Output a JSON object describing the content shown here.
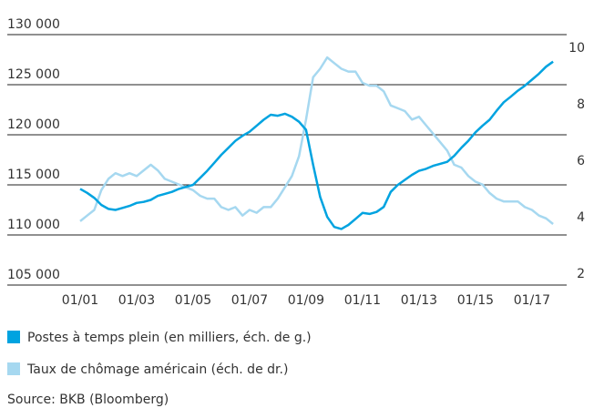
{
  "chart_data": {
    "type": "line",
    "x": [
      2001,
      2001.25,
      2001.5,
      2001.75,
      2002,
      2002.25,
      2002.5,
      2002.75,
      2003,
      2003.25,
      2003.5,
      2003.75,
      2004,
      2004.25,
      2004.5,
      2004.75,
      2005,
      2005.25,
      2005.5,
      2005.75,
      2006,
      2006.25,
      2006.5,
      2006.75,
      2007,
      2007.25,
      2007.5,
      2007.75,
      2008,
      2008.25,
      2008.5,
      2008.75,
      2009,
      2009.25,
      2009.5,
      2009.75,
      2010,
      2010.25,
      2010.5,
      2010.75,
      2011,
      2011.25,
      2011.5,
      2011.75,
      2012,
      2012.25,
      2012.5,
      2012.75,
      2013,
      2013.25,
      2013.5,
      2013.75,
      2014,
      2014.25,
      2014.5,
      2014.75,
      2015,
      2015.25,
      2015.5,
      2015.75,
      2016,
      2016.25,
      2016.5,
      2016.75,
      2017,
      2017.25,
      2017.5,
      2017.75
    ],
    "series": [
      {
        "name": "Postes à temps plein (en milliers, éch. de g.)",
        "color": "#00a3e0",
        "values": [
          114600,
          114200,
          113700,
          113000,
          112600,
          112500,
          112700,
          112900,
          113200,
          113300,
          113500,
          113900,
          114100,
          114300,
          114600,
          114800,
          115000,
          115700,
          116400,
          117200,
          118000,
          118700,
          119400,
          119900,
          120300,
          120900,
          121500,
          122000,
          121900,
          122100,
          121800,
          121300,
          120500,
          117000,
          113800,
          111800,
          110800,
          110600,
          111000,
          111600,
          112200,
          112100,
          112300,
          112800,
          114300,
          115000,
          115500,
          116000,
          116400,
          116600,
          116900,
          117100,
          117300,
          117900,
          118700,
          119400,
          120250,
          120900,
          121500,
          122400,
          123250,
          123800,
          124400,
          124900,
          125500,
          126100,
          126800,
          127300
        ]
      },
      {
        "name": "Taux de chômage américain (éch. de dr.)",
        "color": "#a6d8f0",
        "axis": "y2",
        "values": [
          4.2,
          4.4,
          4.6,
          5.3,
          5.7,
          5.9,
          5.8,
          5.9,
          5.8,
          6.0,
          6.2,
          6.0,
          5.7,
          5.6,
          5.5,
          5.4,
          5.3,
          5.1,
          5.0,
          5.0,
          4.7,
          4.6,
          4.7,
          4.4,
          4.6,
          4.5,
          4.7,
          4.7,
          5.0,
          5.4,
          5.8,
          6.5,
          7.8,
          9.3,
          9.6,
          10.0,
          9.8,
          9.6,
          9.5,
          9.5,
          9.1,
          9.0,
          9.0,
          8.8,
          8.3,
          8.2,
          8.1,
          7.8,
          7.9,
          7.6,
          7.3,
          7.0,
          6.7,
          6.2,
          6.1,
          5.8,
          5.6,
          5.5,
          5.2,
          5.0,
          4.9,
          4.9,
          4.9,
          4.7,
          4.6,
          4.4,
          4.3,
          4.1
        ]
      }
    ],
    "xlim": [
      1998.42,
      2018.23
    ],
    "xticks": [
      {
        "value": 2001,
        "label": "01/01"
      },
      {
        "value": 2003,
        "label": "01/03"
      },
      {
        "value": 2005,
        "label": "01/05"
      },
      {
        "value": 2007,
        "label": "01/07"
      },
      {
        "value": 2009,
        "label": "01/09"
      },
      {
        "value": 2011,
        "label": "01/11"
      },
      {
        "value": 2013,
        "label": "01/13"
      },
      {
        "value": 2015,
        "label": "01/15"
      },
      {
        "value": 2017,
        "label": "01/17"
      }
    ],
    "ylim": [
      105000,
      130000
    ],
    "yticks": [
      {
        "value": 105000,
        "label": "105 000"
      },
      {
        "value": 110000,
        "label": "110 000"
      },
      {
        "value": 115000,
        "label": "115 000"
      },
      {
        "value": 120000,
        "label": "120 000"
      },
      {
        "value": 125000,
        "label": "125 000"
      },
      {
        "value": 130000,
        "label": "130 000"
      }
    ],
    "y2lim": [
      1.94,
      10.81
    ],
    "y2ticks": [
      2,
      4,
      6,
      8,
      10
    ],
    "grid": true,
    "source": "Source: BKB (Bloomberg)"
  }
}
